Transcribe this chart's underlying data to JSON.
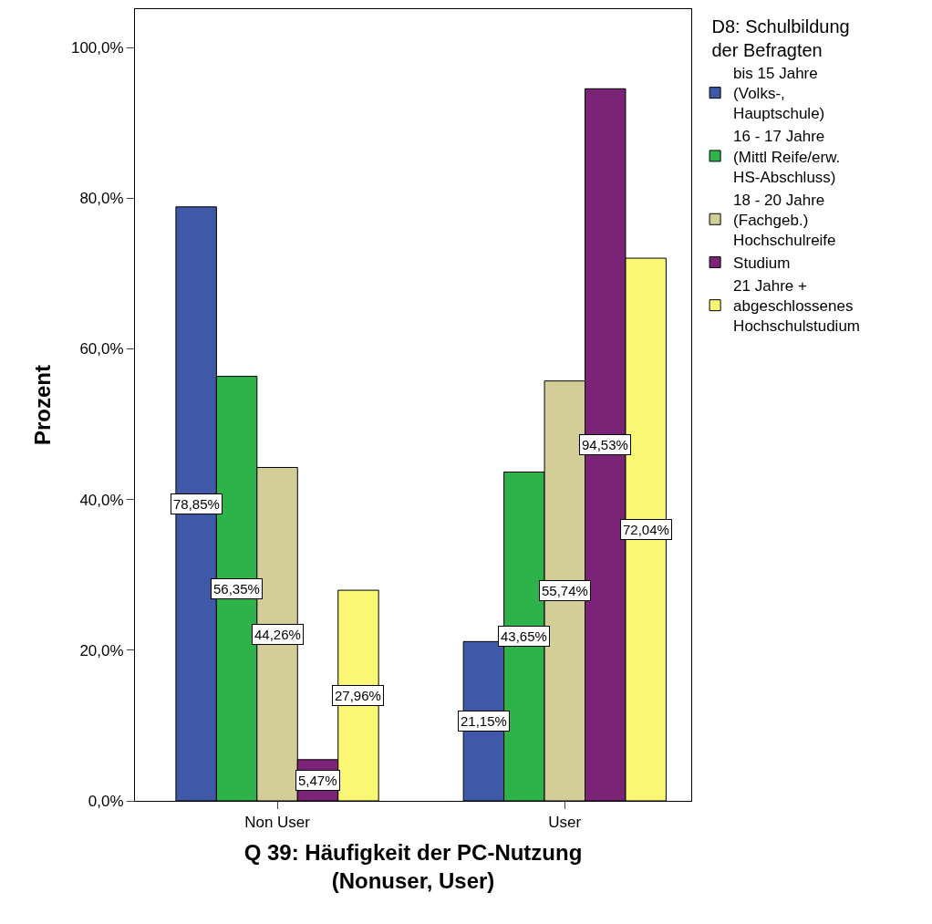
{
  "chart_data": {
    "type": "bar",
    "xlabel": "Q 39: Häufigkeit der PC-Nutzung (Nonuser, User)",
    "ylabel": "Prozent",
    "legend_title": "D8: Schulbildung der Befragten",
    "categories": [
      "Non User",
      "User"
    ],
    "series": [
      {
        "name": "bis 15 Jahre (Volks-, Hauptschule)",
        "color": "#3f58a8",
        "values": [
          78.85,
          21.15
        ],
        "value_labels": [
          "78,85%",
          "21,15%"
        ]
      },
      {
        "name": "16 - 17 Jahre (Mittl Reife/erw. HS-Abschluss)",
        "color": "#2db34a",
        "values": [
          56.35,
          43.65
        ],
        "value_labels": [
          "56,35%",
          "43,65%"
        ]
      },
      {
        "name": "18 - 20 Jahre (Fachgeb.) Hochschulreife",
        "color": "#d3ce98",
        "values": [
          44.26,
          55.74
        ],
        "value_labels": [
          "44,26%",
          "55,74%"
        ]
      },
      {
        "name": "Studium",
        "color": "#7b2477",
        "values": [
          5.47,
          94.53
        ],
        "value_labels": [
          "5,47%",
          "94,53%"
        ]
      },
      {
        "name": "21 Jahre + abgeschlossenes Hochschulstudium",
        "color": "#f9f774",
        "values": [
          27.96,
          72.04
        ],
        "value_labels": [
          "27,96%",
          "72,04%"
        ]
      }
    ],
    "ylim": [
      0,
      105.1
    ],
    "yticks": [
      {
        "value": 0,
        "label": "0,0%"
      },
      {
        "value": 20,
        "label": "20,0%"
      },
      {
        "value": 40,
        "label": "40,0%"
      },
      {
        "value": 60,
        "label": "60,0%"
      },
      {
        "value": 80,
        "label": "80,0%"
      },
      {
        "value": 100,
        "label": "100,0%"
      }
    ],
    "legend": "right"
  }
}
